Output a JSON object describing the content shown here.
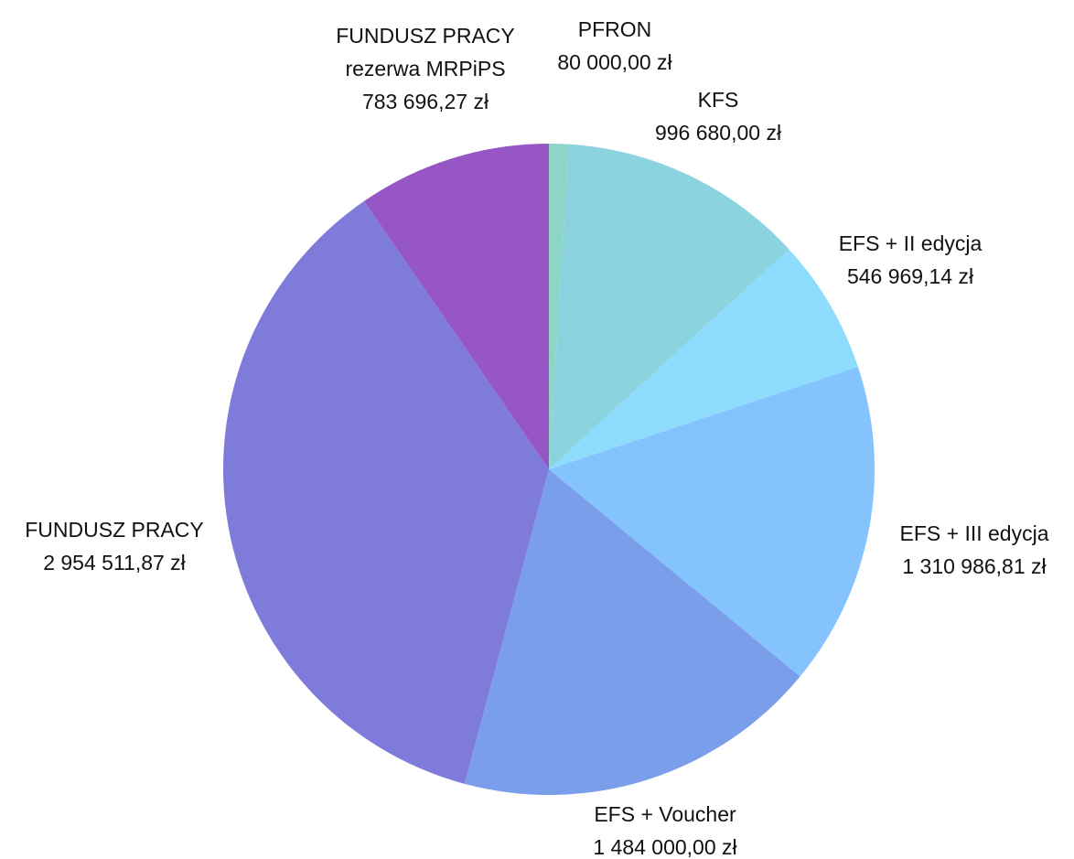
{
  "chart_data": {
    "type": "pie",
    "categories": [
      "PFRON",
      "KFS",
      "EFS + II edycja",
      "EFS + III edycja",
      "EFS + Voucher",
      "FUNDUSZ PRACY",
      "FUNDUSZ PRACY rezerwa MRPiPS"
    ],
    "values": [
      80000,
      996680,
      546969.14,
      1310986.81,
      1484000,
      2954511.87,
      783696.27
    ],
    "value_labels": [
      "80 000,00 zł",
      "996 680,00 zł",
      "546 969,14 zł",
      "1 310 986,81 zł",
      "1 484 000,00 zł",
      "2 954 511,87 zł",
      "783 696,27 zł"
    ],
    "colors": [
      "#8fd6c9",
      "#8ad3df",
      "#8edcfd",
      "#84c3fd",
      "#7a9eea",
      "#7f7bdb",
      "#9656c4"
    ]
  }
}
